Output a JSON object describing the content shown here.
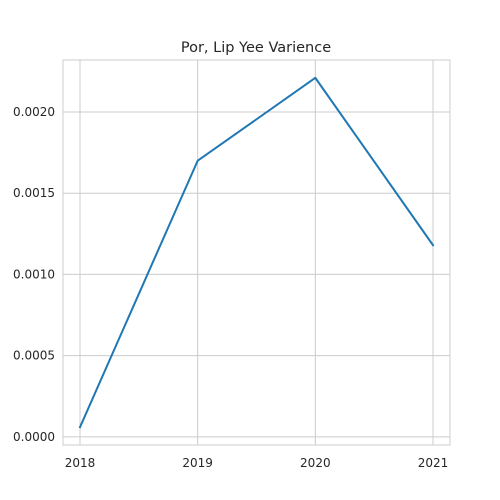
{
  "chart_data": {
    "type": "line",
    "title": "Por, Lip Yee Varience",
    "xlabel": "",
    "ylabel": "",
    "x": [
      "2018",
      "2019",
      "2020",
      "2021"
    ],
    "series": [
      {
        "values": [
          6e-05,
          0.0017,
          0.00221,
          0.00118
        ]
      }
    ],
    "yticks": [
      0.0,
      0.0005,
      0.001,
      0.0015,
      0.002
    ],
    "ytick_labels": [
      "0.0000",
      "0.0005",
      "0.0010",
      "0.0015",
      "0.0020"
    ],
    "xtick_labels": [
      "2018",
      "2019",
      "2020",
      "2021"
    ],
    "ylim": [
      -5e-05,
      0.00232
    ],
    "grid": true,
    "legend": "none",
    "line_color": "#1f77b4",
    "grid_color": "#cccccc"
  }
}
